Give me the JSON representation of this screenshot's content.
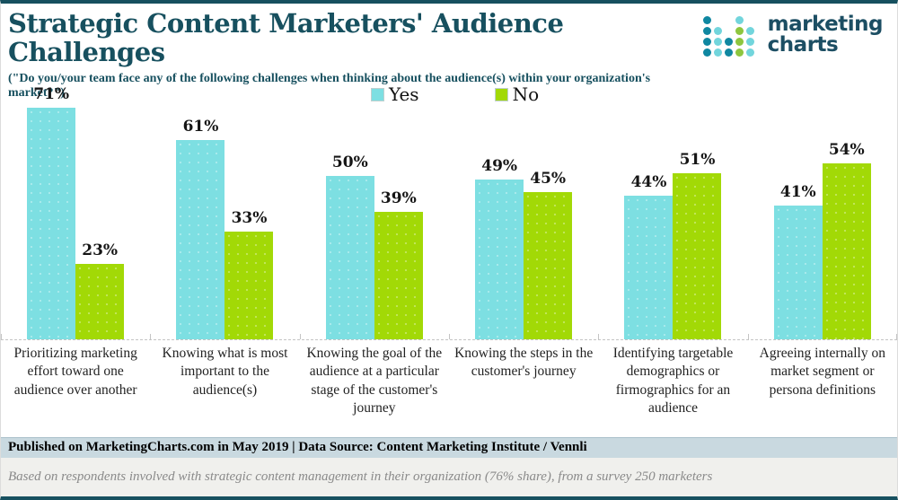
{
  "header": {
    "title": "Strategic Content Marketers' Audience Challenges",
    "subtitle": "(\"Do you/your team face any of the following challenges when thinking about the audience(s) within your organization's market?\")"
  },
  "logo": {
    "line1": "marketing",
    "line2": "charts",
    "colors": {
      "dark": "#0f87a1",
      "light": "#72d5dc",
      "green": "#8dc63f",
      "text": "#1c4e63"
    },
    "dots": [
      [
        "dark",
        "",
        "",
        "light",
        ""
      ],
      [
        "dark",
        "light",
        "",
        "green",
        "light"
      ],
      [
        "dark",
        "light",
        "dark",
        "green",
        "light"
      ],
      [
        "dark",
        "light",
        "dark",
        "green",
        "light"
      ]
    ]
  },
  "legend": [
    {
      "label": "Yes",
      "color": "#7ddfe2"
    },
    {
      "label": "No",
      "color": "#a2d906"
    }
  ],
  "chart_data": {
    "type": "bar",
    "title": "Strategic Content Marketers' Audience Challenges",
    "categories": [
      "Prioritizing marketing effort toward one audience over another",
      "Knowing what is most important to the audience(s)",
      "Knowing the goal of the audience at a particular stage of the customer's journey",
      "Knowing the steps in the customer's journey",
      "Identifying targetable demographics or firmographics for an audience",
      "Agreeing internally on market segment or persona definitions"
    ],
    "series": [
      {
        "name": "Yes",
        "color": "#7ddfe2",
        "values": [
          71,
          61,
          50,
          49,
          44,
          41
        ],
        "labels": [
          "71%",
          "61%",
          "50%",
          "49%",
          "44%",
          "41%"
        ]
      },
      {
        "name": "No",
        "color": "#a2d906",
        "values": [
          23,
          33,
          39,
          45,
          51,
          54
        ],
        "labels": [
          "23%",
          "33%",
          "39%",
          "45%",
          "51%",
          "54%"
        ]
      }
    ],
    "ylim": [
      0,
      80
    ],
    "value_label_suffix": "%",
    "grid": false,
    "legend_position": "top-center"
  },
  "footer": {
    "published": "Published on MarketingCharts.com in May 2019 | Data Source: Content Marketing Institute / Vennli",
    "note": "Based on respondents involved with strategic content management in their organization (76% share), from a survey 250 marketers"
  }
}
